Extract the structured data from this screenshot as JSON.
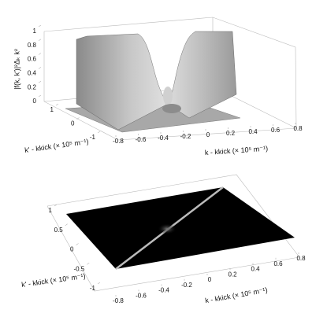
{
  "chart_data": [
    {
      "type": "surface",
      "xlabel": "k - kkick (× 10⁵ m⁻¹)",
      "ylabel": "k' - kkick (× 10⁵ m⁻¹)",
      "zlabel": "|f(k, k')|²Δₖ k²",
      "xlim": [
        -0.8,
        0.8
      ],
      "xticks": [
        -0.8,
        -0.6,
        -0.4,
        -0.2,
        0,
        0.2,
        0.4,
        0.6,
        0.8
      ],
      "ylim": [
        -1,
        1
      ],
      "yticks": [
        -1,
        0,
        1
      ],
      "zlim": [
        0,
        1
      ],
      "zticks": [
        0,
        0.2,
        0.4,
        0.6,
        0.8,
        1
      ]
    },
    {
      "type": "surface",
      "xlabel": "k - kkick (× 10⁵ m⁻¹)",
      "ylabel": "k' - kkick (× 10⁵ m⁻¹)",
      "xlim": [
        -0.8,
        0.8
      ],
      "xticks": [
        -0.8,
        -0.6,
        -0.4,
        -0.2,
        0,
        0.2,
        0.4,
        0.6,
        0.8
      ],
      "ylim": [
        -1,
        1
      ],
      "yticks": [
        -1,
        -0.5,
        0,
        0.5,
        1
      ]
    }
  ]
}
